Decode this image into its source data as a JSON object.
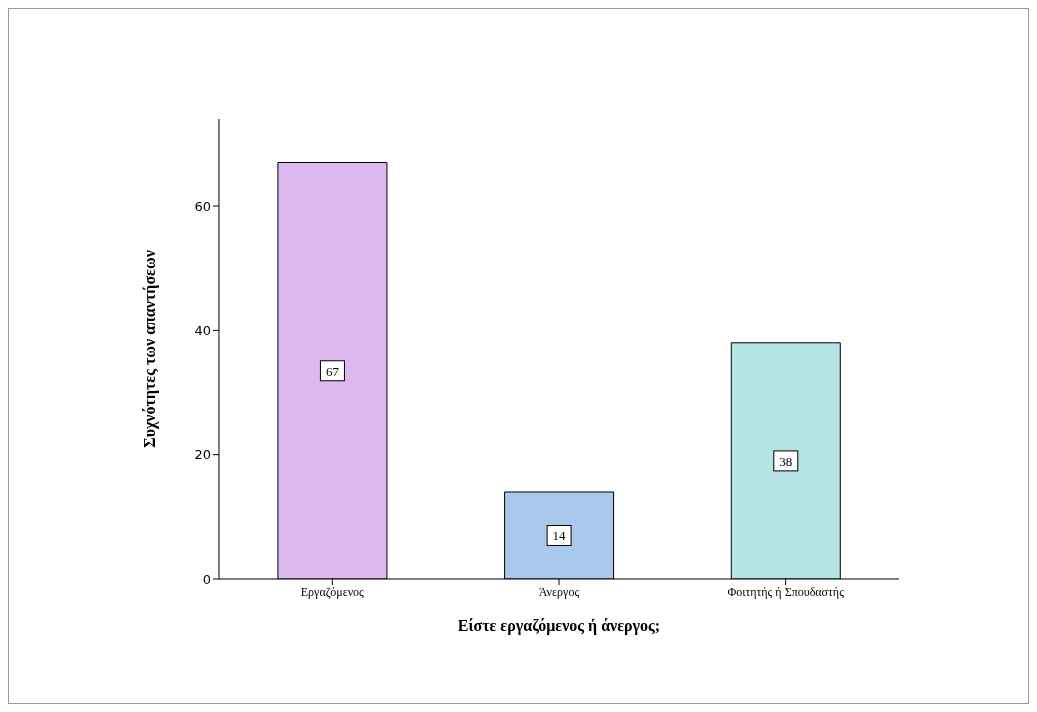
{
  "chart_data": {
    "type": "bar",
    "xlabel": "Είστε εργαζόμενος ή άνεργος;",
    "ylabel": "Συχνότητες των απαντήσεων",
    "categories": [
      "Εργαζόμενος",
      "Άνεργος",
      "Φοιτητής ή Σπουδαστής"
    ],
    "values": [
      67,
      14,
      38
    ],
    "colors": [
      "#dcb8f0",
      "#a8c8ec",
      "#b4e4e4"
    ],
    "ylim": [
      0,
      74
    ],
    "yticks": [
      0,
      20,
      40,
      60
    ],
    "grid": false,
    "data_labels": true
  }
}
